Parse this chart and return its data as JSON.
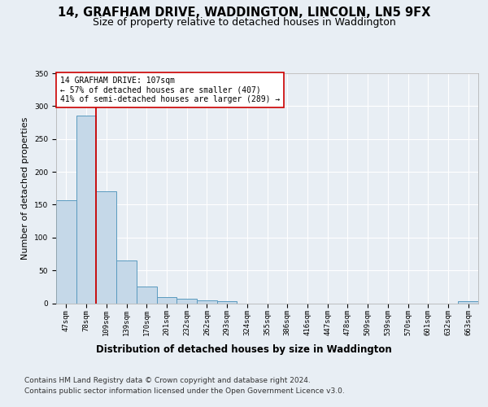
{
  "title_line1": "14, GRAFHAM DRIVE, WADDINGTON, LINCOLN, LN5 9FX",
  "title_line2": "Size of property relative to detached houses in Waddington",
  "xlabel": "Distribution of detached houses by size in Waddington",
  "ylabel": "Number of detached properties",
  "categories": [
    "47sqm",
    "78sqm",
    "109sqm",
    "139sqm",
    "170sqm",
    "201sqm",
    "232sqm",
    "262sqm",
    "293sqm",
    "324sqm",
    "355sqm",
    "386sqm",
    "416sqm",
    "447sqm",
    "478sqm",
    "509sqm",
    "539sqm",
    "570sqm",
    "601sqm",
    "632sqm",
    "663sqm"
  ],
  "values": [
    157,
    285,
    170,
    65,
    25,
    9,
    7,
    4,
    3,
    0,
    0,
    0,
    0,
    0,
    0,
    0,
    0,
    0,
    0,
    0,
    3
  ],
  "bar_color": "#c5d8e8",
  "bar_edge_color": "#5a9abf",
  "vline_pos": 1.5,
  "vline_color": "#cc0000",
  "annotation_text": "14 GRAFHAM DRIVE: 107sqm\n← 57% of detached houses are smaller (407)\n41% of semi-detached houses are larger (289) →",
  "annotation_box_color": "#ffffff",
  "annotation_box_edge": "#cc0000",
  "background_color": "#e8eef4",
  "ylim": [
    0,
    350
  ],
  "yticks": [
    0,
    50,
    100,
    150,
    200,
    250,
    300,
    350
  ],
  "title_fontsize": 10.5,
  "subtitle_fontsize": 9,
  "xlabel_fontsize": 8.5,
  "ylabel_fontsize": 8,
  "tick_fontsize": 6.5,
  "annotation_fontsize": 7,
  "footer_line1": "Contains HM Land Registry data © Crown copyright and database right 2024.",
  "footer_line2": "Contains public sector information licensed under the Open Government Licence v3.0.",
  "footer_fontsize": 6.5
}
